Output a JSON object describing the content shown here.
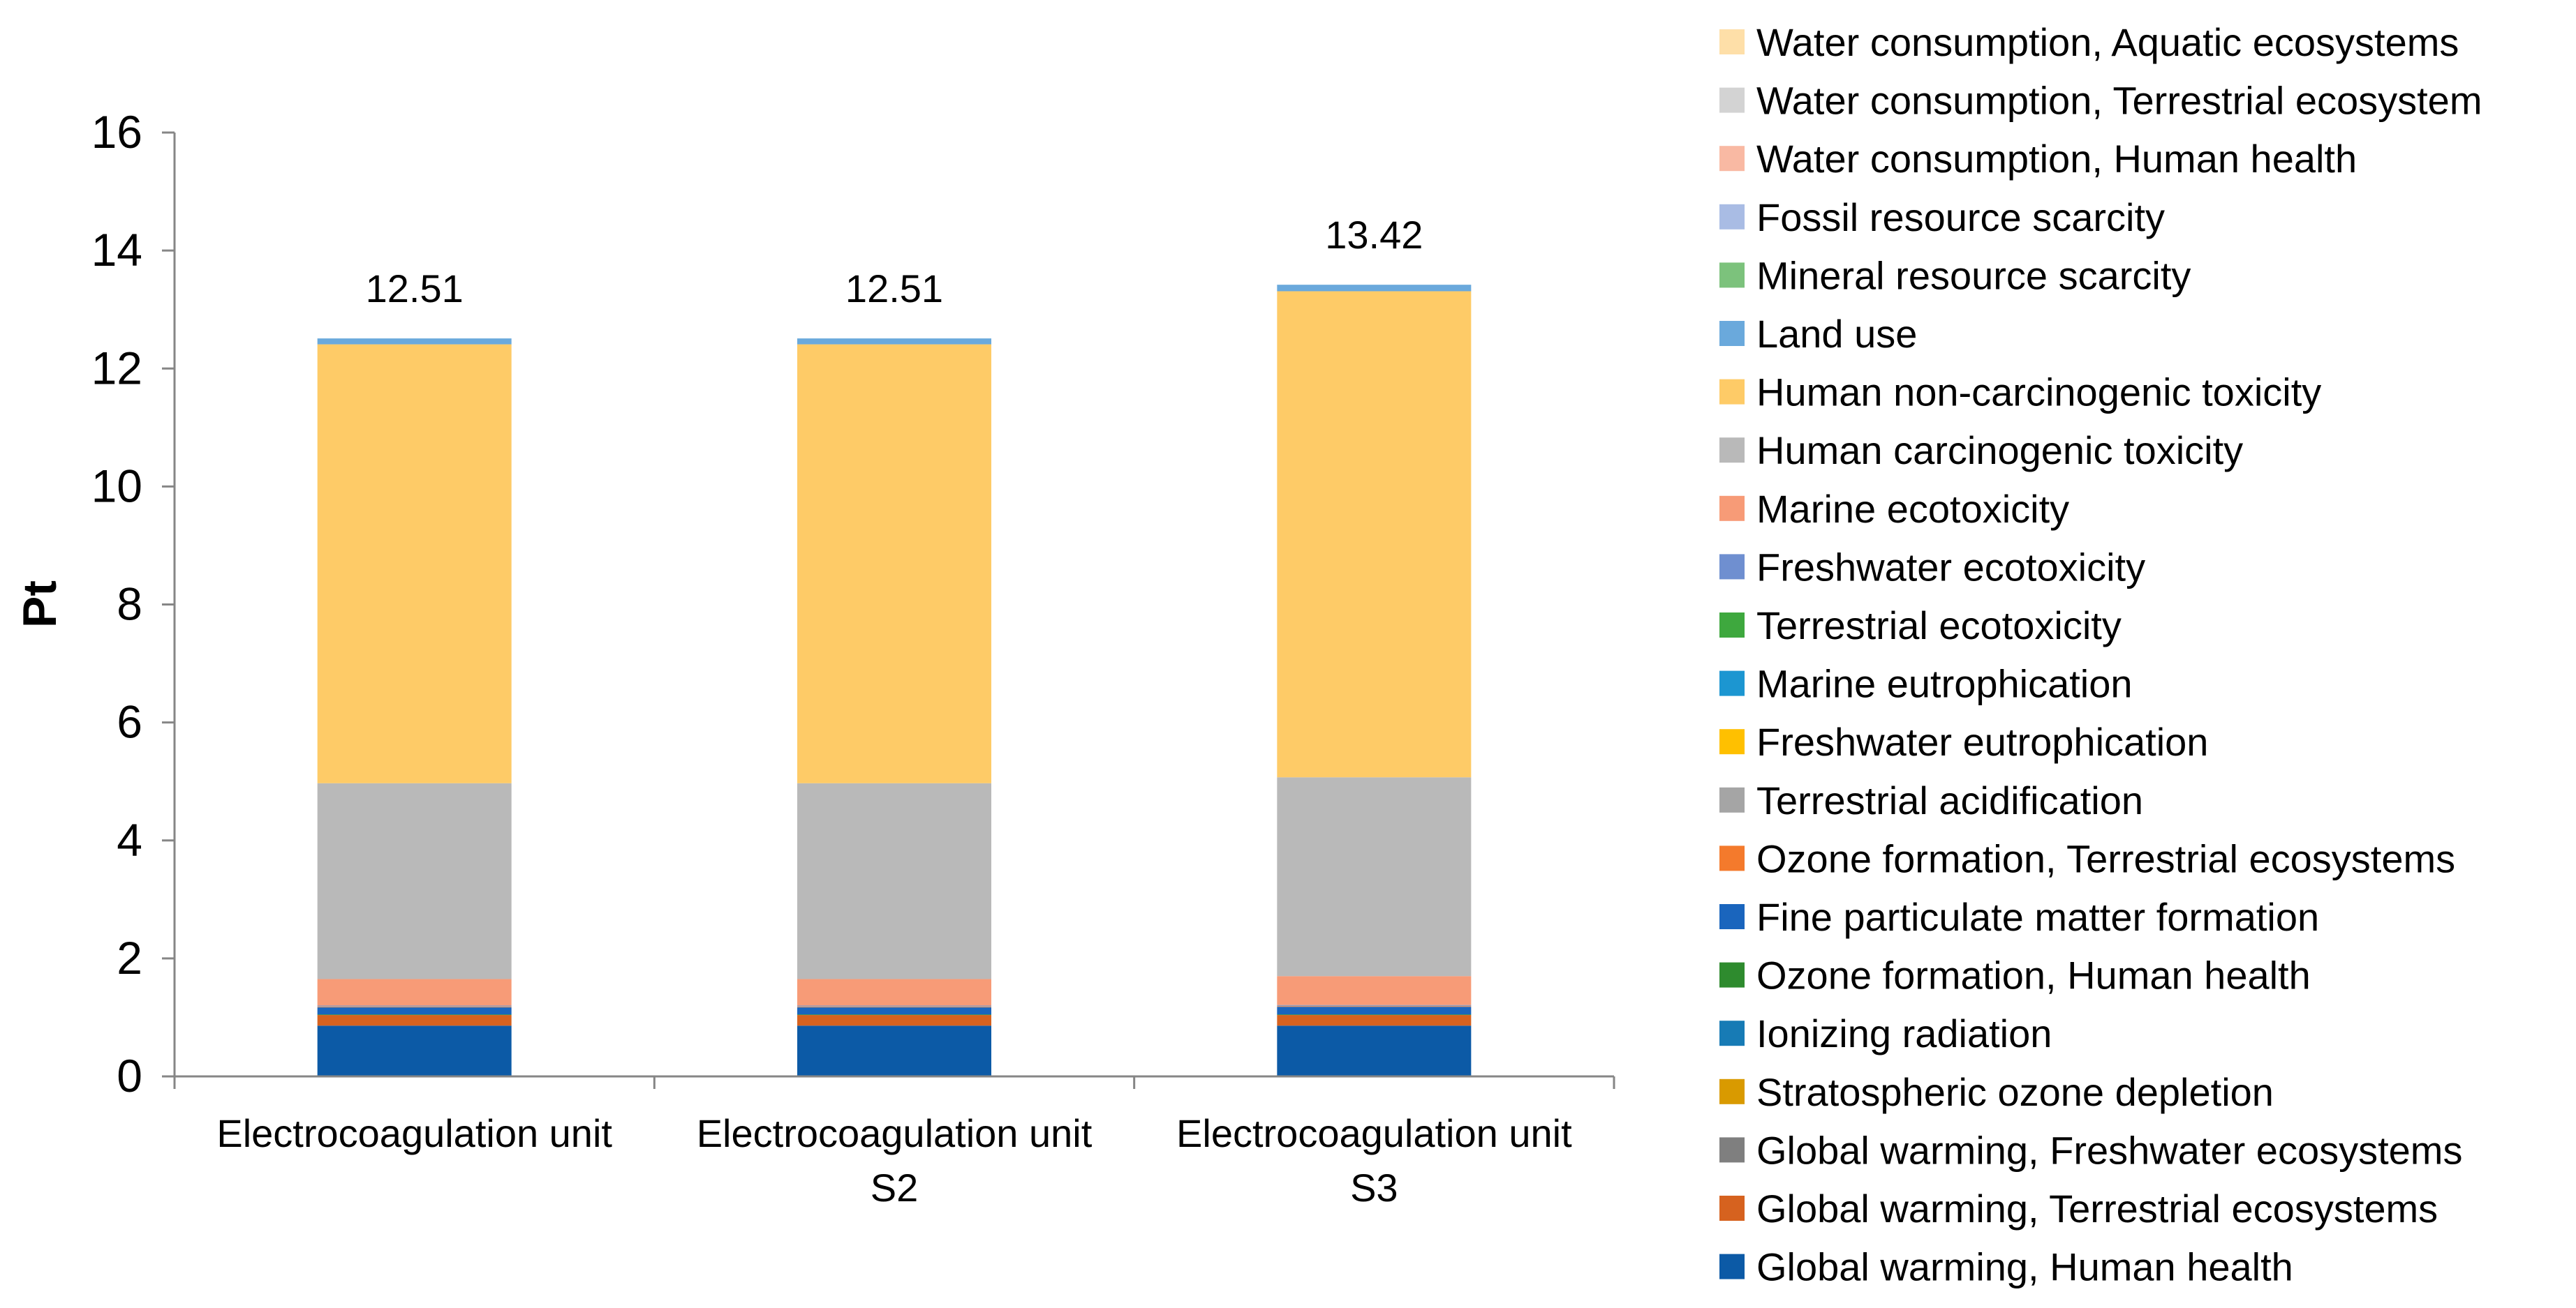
{
  "chart_data": {
    "type": "bar",
    "stacked": true,
    "title": "",
    "xlabel": "",
    "ylabel": "Pt",
    "ylim": [
      0,
      16
    ],
    "yticks": [
      0,
      2,
      4,
      6,
      8,
      10,
      12,
      14,
      16
    ],
    "grid": false,
    "legend_position": "right",
    "categories": [
      [
        "Electrocoagulation unit"
      ],
      [
        "Electrocoagulation unit",
        "S2"
      ],
      [
        "Electrocoagulation unit",
        "S3"
      ]
    ],
    "totals": [
      "12.51",
      "12.51",
      "13.42"
    ],
    "series": [
      {
        "name": "Global warming, Human health",
        "color": "#0c5aa6",
        "values": [
          0.86,
          0.86,
          0.86
        ]
      },
      {
        "name": "Global warming, Terrestrial ecosystems",
        "color": "#d6621f",
        "values": [
          0.18,
          0.18,
          0.18
        ]
      },
      {
        "name": "Global warming, Freshwater ecosystems",
        "color": "#7f7f7f",
        "values": [
          0.0,
          0.0,
          0.0
        ]
      },
      {
        "name": "Stratospheric ozone depletion",
        "color": "#d99a00",
        "values": [
          0.0,
          0.0,
          0.0
        ]
      },
      {
        "name": "Ionizing radiation",
        "color": "#177bb5",
        "values": [
          0.0,
          0.0,
          0.0
        ]
      },
      {
        "name": "Ozone formation, Human health",
        "color": "#2e8b2e",
        "values": [
          0.01,
          0.01,
          0.01
        ]
      },
      {
        "name": "Fine particulate matter formation",
        "color": "#1a65bd",
        "values": [
          0.12,
          0.12,
          0.13
        ]
      },
      {
        "name": "Ozone formation, Terrestrial ecosystems",
        "color": "#f47a2c",
        "values": [
          0.01,
          0.01,
          0.01
        ]
      },
      {
        "name": "Terrestrial acidification",
        "color": "#a5a5a5",
        "values": [
          0.01,
          0.01,
          0.01
        ]
      },
      {
        "name": "Freshwater eutrophication",
        "color": "#ffc000",
        "values": [
          0.0,
          0.0,
          0.0
        ]
      },
      {
        "name": "Marine eutrophication",
        "color": "#1c96d1",
        "values": [
          0.0,
          0.0,
          0.0
        ]
      },
      {
        "name": "Terrestrial ecotoxicity",
        "color": "#3ea83e",
        "values": [
          0.0,
          0.0,
          0.0
        ]
      },
      {
        "name": "Freshwater ecotoxicity",
        "color": "#6f8fd0",
        "values": [
          0.01,
          0.01,
          0.01
        ]
      },
      {
        "name": "Marine ecotoxicity",
        "color": "#f79b77",
        "values": [
          0.45,
          0.45,
          0.49
        ]
      },
      {
        "name": "Human carcinogenic toxicity",
        "color": "#b9b9b9",
        "values": [
          3.32,
          3.32,
          3.37
        ]
      },
      {
        "name": "Human non-carcinogenic toxicity",
        "color": "#fecb67",
        "values": [
          7.44,
          7.44,
          8.24
        ]
      },
      {
        "name": "Land use",
        "color": "#6aa9dc",
        "values": [
          0.1,
          0.1,
          0.11
        ]
      },
      {
        "name": "Mineral resource scarcity",
        "color": "#7cc27c",
        "values": [
          0.0,
          0.0,
          0.0
        ]
      },
      {
        "name": "Fossil resource scarcity",
        "color": "#a9bce4",
        "values": [
          0.0,
          0.0,
          0.0
        ]
      },
      {
        "name": "Water consumption, Human health",
        "color": "#f9b9a3",
        "values": [
          0.0,
          0.0,
          0.0
        ]
      },
      {
        "name": "Water consumption, Terrestrial ecosystem",
        "color": "#d3d3d3",
        "values": [
          0.0,
          0.0,
          0.0
        ]
      },
      {
        "name": "Water consumption, Aquatic ecosystems",
        "color": "#fedfa8",
        "values": [
          0.0,
          0.0,
          0.0
        ]
      }
    ]
  }
}
